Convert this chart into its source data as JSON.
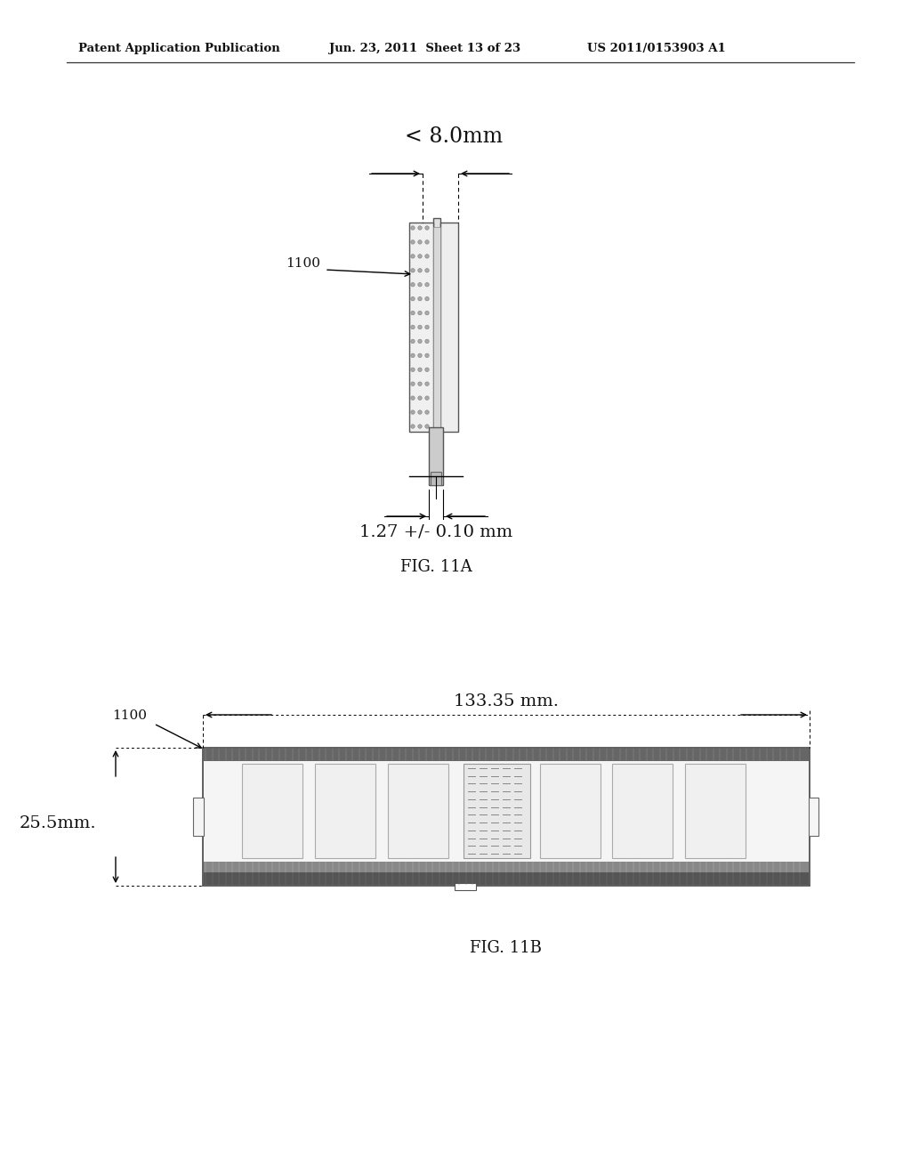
{
  "bg_color": "#ffffff",
  "header_left": "Patent Application Publication",
  "header_mid": "Jun. 23, 2011  Sheet 13 of 23",
  "header_right": "US 2011/0153903 A1",
  "fig11a_label": "FIG. 11A",
  "fig11b_label": "FIG. 11B",
  "dim_top": "< 8.0mm",
  "dim_bottom": "1.27 +/- 0.10 mm",
  "dim_width": "133.35 mm.",
  "dim_height": "25.5mm.",
  "label_1100": "1100"
}
